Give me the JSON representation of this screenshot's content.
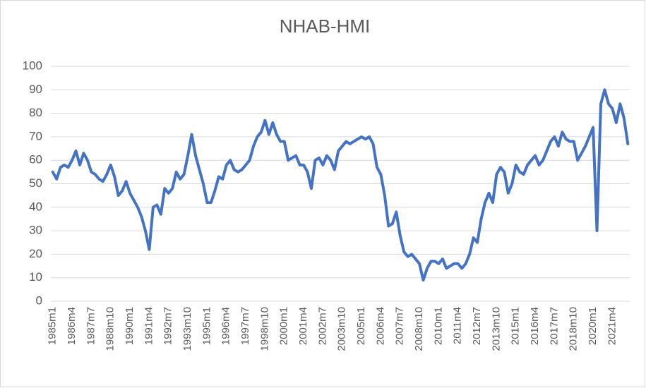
{
  "chart_data": {
    "type": "line",
    "title": "NHAB-HMI",
    "categories": [
      "1985m1",
      null,
      null,
      null,
      null,
      "1986m4",
      null,
      null,
      null,
      null,
      "1987m7",
      null,
      null,
      null,
      null,
      "1988m10",
      null,
      null,
      null,
      null,
      "1990m1",
      null,
      null,
      null,
      null,
      "1991m4",
      null,
      null,
      null,
      null,
      "1992m7",
      null,
      null,
      null,
      null,
      "1993m10",
      null,
      null,
      null,
      null,
      "1995m1",
      null,
      null,
      null,
      null,
      "1996m4",
      null,
      null,
      null,
      null,
      "1997m7",
      null,
      null,
      null,
      null,
      "1998m10",
      null,
      null,
      null,
      null,
      "2000m1",
      null,
      null,
      null,
      null,
      "2001m4",
      null,
      null,
      null,
      null,
      "2002m7",
      null,
      null,
      null,
      null,
      "2003m10",
      null,
      null,
      null,
      null,
      "2005m1",
      null,
      null,
      null,
      null,
      "2006m4",
      null,
      null,
      null,
      null,
      "2007m7",
      null,
      null,
      null,
      null,
      "2008m10",
      null,
      null,
      null,
      null,
      "2010m1",
      null,
      null,
      null,
      null,
      "2011m4",
      null,
      null,
      null,
      null,
      "2012m7",
      null,
      null,
      null,
      null,
      "2013m10",
      null,
      null,
      null,
      null,
      "2015m1",
      null,
      null,
      null,
      null,
      "2016m4",
      null,
      null,
      null,
      null,
      "2017m7",
      null,
      null,
      null,
      null,
      "2018m10",
      null,
      null,
      null,
      null,
      "2020m1",
      null,
      null,
      null,
      null,
      "2021m4",
      null,
      null,
      null,
      null
    ],
    "series": [
      {
        "name": "NHAB-HMI",
        "color": "#4472c4",
        "values": [
          55,
          52,
          57,
          58,
          57,
          60,
          64,
          58,
          63,
          60,
          55,
          54,
          52,
          51,
          54,
          58,
          53,
          45,
          47,
          51,
          46,
          43,
          40,
          36,
          30,
          22,
          40,
          41,
          37,
          48,
          46,
          48,
          55,
          52,
          54,
          62,
          71,
          62,
          56,
          50,
          42,
          42,
          47,
          53,
          52,
          58,
          60,
          56,
          55,
          56,
          58,
          60,
          66,
          70,
          72,
          77,
          71,
          76,
          71,
          68,
          68,
          60,
          61,
          62,
          58,
          58,
          55,
          48,
          60,
          61,
          58,
          62,
          60,
          56,
          64,
          66,
          68,
          67,
          68,
          69,
          70,
          69,
          70,
          67,
          57,
          54,
          45,
          32,
          33,
          38,
          28,
          21,
          19,
          20,
          18,
          16,
          9,
          14,
          17,
          17,
          16,
          18,
          14,
          15,
          16,
          16,
          14,
          16,
          20,
          27,
          25,
          35,
          42,
          46,
          42,
          54,
          57,
          55,
          46,
          50,
          58,
          55,
          54,
          58,
          60,
          62,
          58,
          60,
          64,
          68,
          70,
          66,
          72,
          69,
          68,
          68,
          60,
          63,
          66,
          70,
          74,
          30,
          84,
          90,
          84,
          82,
          76,
          84,
          78,
          67
        ]
      }
    ],
    "ylim": [
      0,
      100
    ],
    "yticks": [
      0,
      10,
      20,
      30,
      40,
      50,
      60,
      70,
      80,
      90,
      100
    ],
    "grid": true
  }
}
